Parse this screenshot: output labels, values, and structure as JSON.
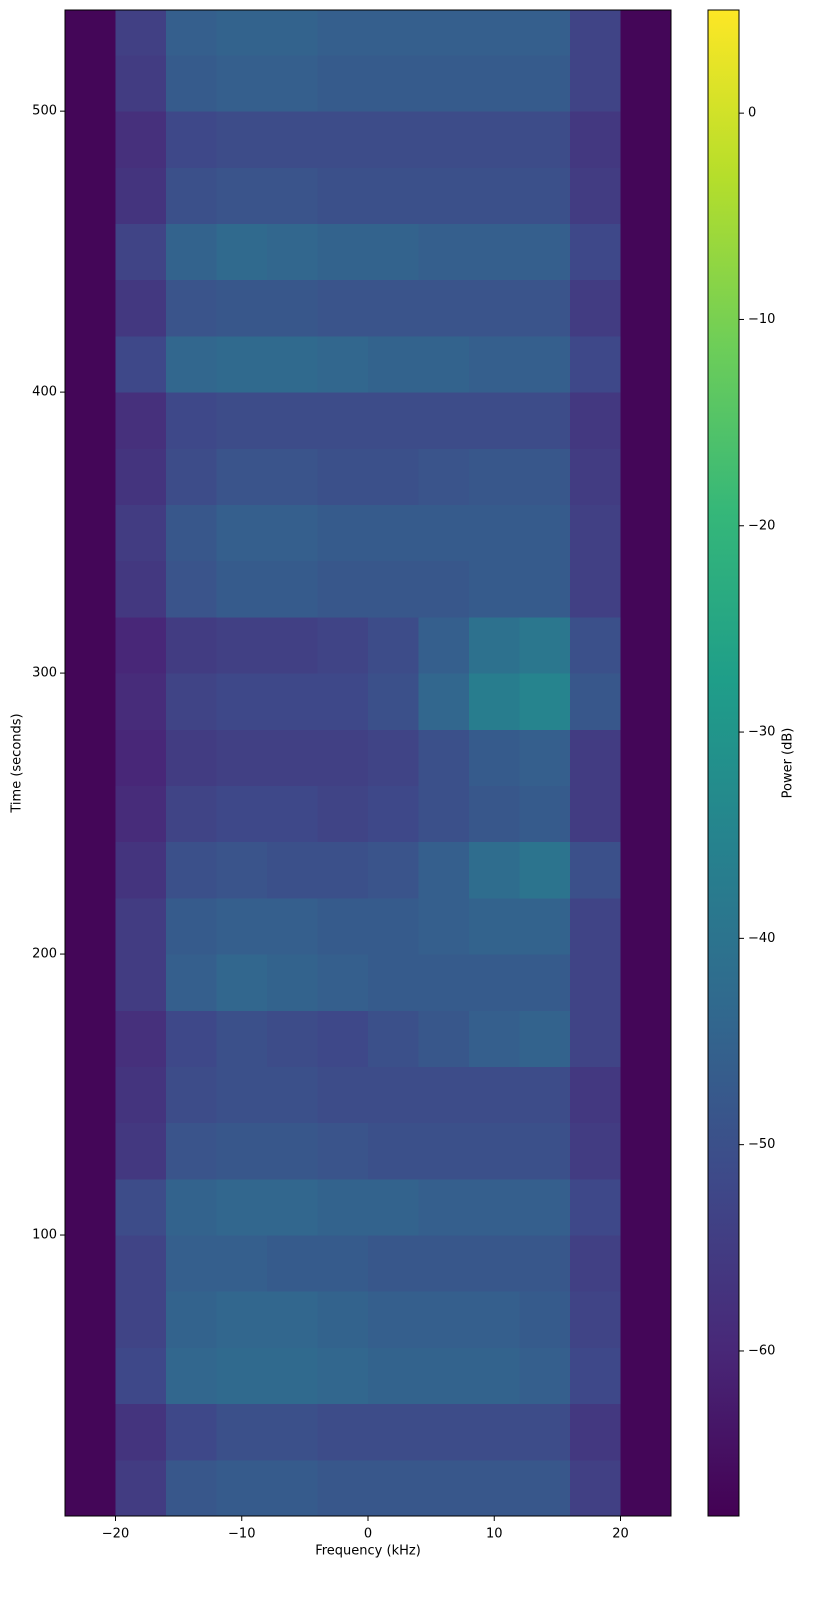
{
  "chart_data": {
    "type": "heatmap",
    "x_label": "Frequency (kHz)",
    "y_label": "Time (seconds)",
    "colorbar_label": "Power (dB)",
    "colormap": [
      "#440154",
      "#482878",
      "#3e4989",
      "#31688e",
      "#26828e",
      "#1f9e89",
      "#35b779",
      "#6ece58",
      "#b5de2b",
      "#fde725"
    ],
    "xlim": [
      -24,
      24
    ],
    "ylim": [
      0,
      536
    ],
    "clim": [
      -68,
      5
    ],
    "xticks": [
      {
        "value": -20,
        "label": "−20"
      },
      {
        "value": -10,
        "label": "−10"
      },
      0,
      10,
      20
    ],
    "yticks": [
      100,
      200,
      300,
      400,
      500
    ],
    "cticks": [
      0,
      {
        "value": -10,
        "label": "−10"
      },
      {
        "value": -20,
        "label": "−20"
      },
      {
        "value": -30,
        "label": "−30"
      },
      {
        "value": -40,
        "label": "−40"
      },
      {
        "value": -50,
        "label": "−50"
      },
      {
        "value": -60,
        "label": "−60"
      }
    ],
    "freq_bins": [
      -24,
      -20,
      -16,
      -12,
      -8,
      -4,
      0,
      4,
      8,
      12,
      16,
      20,
      24
    ],
    "time_bins": [
      0,
      20,
      40,
      60,
      80,
      100,
      120,
      140,
      160,
      180,
      200,
      220,
      240,
      260,
      280,
      300,
      320,
      340,
      360,
      380,
      400,
      420,
      440,
      460,
      480,
      500,
      520,
      536
    ],
    "z": [
      [
        -67,
        -55,
        -48,
        -47,
        -47,
        -48,
        -48,
        -48,
        -48,
        -48,
        -54,
        -67
      ],
      [
        -67,
        -57,
        -52,
        -50,
        -50,
        -51,
        -51,
        -51,
        -51,
        -51,
        -56,
        -67
      ],
      [
        -67,
        -52,
        -44,
        -43,
        -43,
        -44,
        -45,
        -45,
        -45,
        -46,
        -52,
        -67
      ],
      [
        -67,
        -53,
        -45,
        -44,
        -44,
        -45,
        -46,
        -46,
        -46,
        -47,
        -53,
        -67
      ],
      [
        -67,
        -53,
        -46,
        -46,
        -47,
        -47,
        -48,
        -48,
        -48,
        -48,
        -54,
        -67
      ],
      [
        -67,
        -51,
        -45,
        -44,
        -44,
        -45,
        -45,
        -46,
        -46,
        -46,
        -52,
        -67
      ],
      [
        -67,
        -56,
        -49,
        -48,
        -48,
        -49,
        -50,
        -50,
        -50,
        -50,
        -55,
        -67
      ],
      [
        -67,
        -57,
        -51,
        -50,
        -50,
        -51,
        -51,
        -51,
        -51,
        -51,
        -56,
        -67
      ],
      [
        -67,
        -58,
        -52,
        -50,
        -51,
        -52,
        -50,
        -48,
        -46,
        -45,
        -53,
        -67
      ],
      [
        -67,
        -55,
        -46,
        -44,
        -45,
        -46,
        -47,
        -47,
        -47,
        -47,
        -53,
        -67
      ],
      [
        -67,
        -55,
        -47,
        -46,
        -46,
        -47,
        -47,
        -46,
        -45,
        -45,
        -53,
        -67
      ],
      [
        -67,
        -57,
        -50,
        -49,
        -50,
        -50,
        -49,
        -46,
        -42,
        -40,
        -50,
        -67
      ],
      [
        -67,
        -59,
        -53,
        -52,
        -52,
        -53,
        -52,
        -50,
        -48,
        -47,
        -55,
        -67
      ],
      [
        -67,
        -60,
        -55,
        -54,
        -54,
        -54,
        -53,
        -50,
        -47,
        -46,
        -55,
        -67
      ],
      [
        -67,
        -59,
        -53,
        -52,
        -52,
        -52,
        -50,
        -44,
        -37,
        -35,
        -48,
        -67
      ],
      [
        -67,
        -60,
        -55,
        -54,
        -54,
        -53,
        -51,
        -46,
        -41,
        -39,
        -50,
        -67
      ],
      [
        -67,
        -56,
        -49,
        -47,
        -47,
        -48,
        -48,
        -48,
        -47,
        -47,
        -54,
        -67
      ],
      [
        -67,
        -55,
        -48,
        -46,
        -46,
        -47,
        -47,
        -47,
        -47,
        -47,
        -54,
        -67
      ],
      [
        -67,
        -57,
        -51,
        -49,
        -49,
        -50,
        -50,
        -49,
        -48,
        -48,
        -55,
        -67
      ],
      [
        -67,
        -58,
        -52,
        -51,
        -51,
        -51,
        -51,
        -51,
        -51,
        -51,
        -56,
        -67
      ],
      [
        -67,
        -52,
        -44,
        -43,
        -43,
        -44,
        -45,
        -45,
        -46,
        -46,
        -52,
        -67
      ],
      [
        -67,
        -56,
        -49,
        -48,
        -48,
        -49,
        -49,
        -49,
        -49,
        -49,
        -55,
        -67
      ],
      [
        -67,
        -53,
        -45,
        -43,
        -44,
        -45,
        -45,
        -46,
        -46,
        -46,
        -52,
        -67
      ],
      [
        -67,
        -57,
        -50,
        -49,
        -49,
        -50,
        -50,
        -50,
        -50,
        -50,
        -55,
        -67
      ],
      [
        -67,
        -58,
        -52,
        -51,
        -51,
        -51,
        -51,
        -51,
        -51,
        -51,
        -56,
        -67
      ],
      [
        -67,
        -55,
        -47,
        -46,
        -46,
        -47,
        -47,
        -47,
        -47,
        -47,
        -53,
        -67
      ],
      [
        -67,
        -54,
        -46,
        -45,
        -45,
        -46,
        -46,
        -46,
        -46,
        -46,
        -53,
        -67
      ]
    ]
  }
}
